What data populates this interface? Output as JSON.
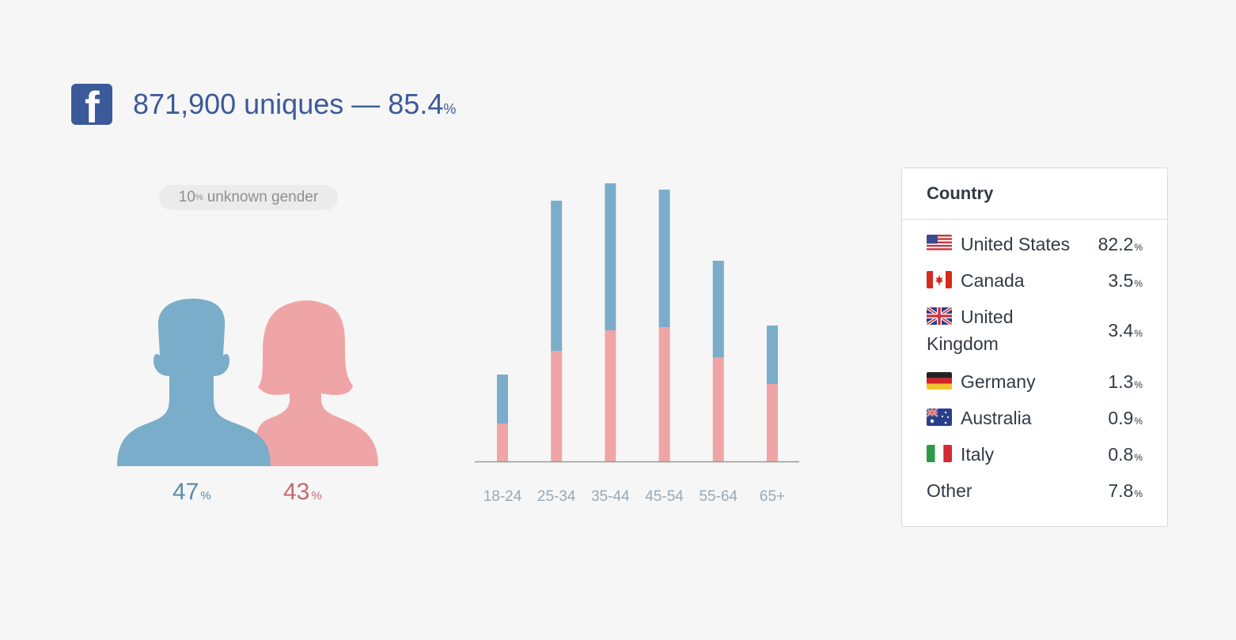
{
  "header": {
    "icon": "facebook-icon",
    "uniques_text": "871,900 uniques",
    "separator": "—",
    "share_value": "85.4",
    "share_unit": "%"
  },
  "gender": {
    "unknown_value": "10",
    "unknown_unit": "%",
    "unknown_label": "unknown gender",
    "male_value": "47",
    "male_unit": "%",
    "female_value": "43",
    "female_unit": "%",
    "colors": {
      "male": "#7aadc9",
      "female": "#efa5a6"
    }
  },
  "chart_data": {
    "type": "bar",
    "stacked": true,
    "categories": [
      "18-24",
      "25-34",
      "35-44",
      "45-54",
      "55-64",
      "65+"
    ],
    "series": [
      {
        "color": "#efa5a6",
        "values": [
          48,
          140,
          166,
          170,
          132,
          98
        ]
      },
      {
        "color": "#7aadc9",
        "values": [
          62,
          190,
          186,
          174,
          122,
          74
        ]
      }
    ],
    "ylim": [
      0,
      360
    ],
    "title": "",
    "xlabel": "",
    "ylabel": "",
    "grid": false
  },
  "country": {
    "title": "Country",
    "rows": [
      {
        "flag": "us-flag-icon",
        "name": "United States",
        "value": "82.2",
        "unit": "%"
      },
      {
        "flag": "ca-flag-icon",
        "name": "Canada",
        "value": "3.5",
        "unit": "%"
      },
      {
        "flag": "uk-flag-icon",
        "name": "United Kingdom",
        "value": "3.4",
        "unit": "%"
      },
      {
        "flag": "de-flag-icon",
        "name": "Germany",
        "value": "1.3",
        "unit": "%"
      },
      {
        "flag": "au-flag-icon",
        "name": "Australia",
        "value": "0.9",
        "unit": "%"
      },
      {
        "flag": "it-flag-icon",
        "name": "Italy",
        "value": "0.8",
        "unit": "%"
      },
      {
        "flag": "",
        "name": "Other",
        "value": "7.8",
        "unit": "%"
      }
    ]
  }
}
